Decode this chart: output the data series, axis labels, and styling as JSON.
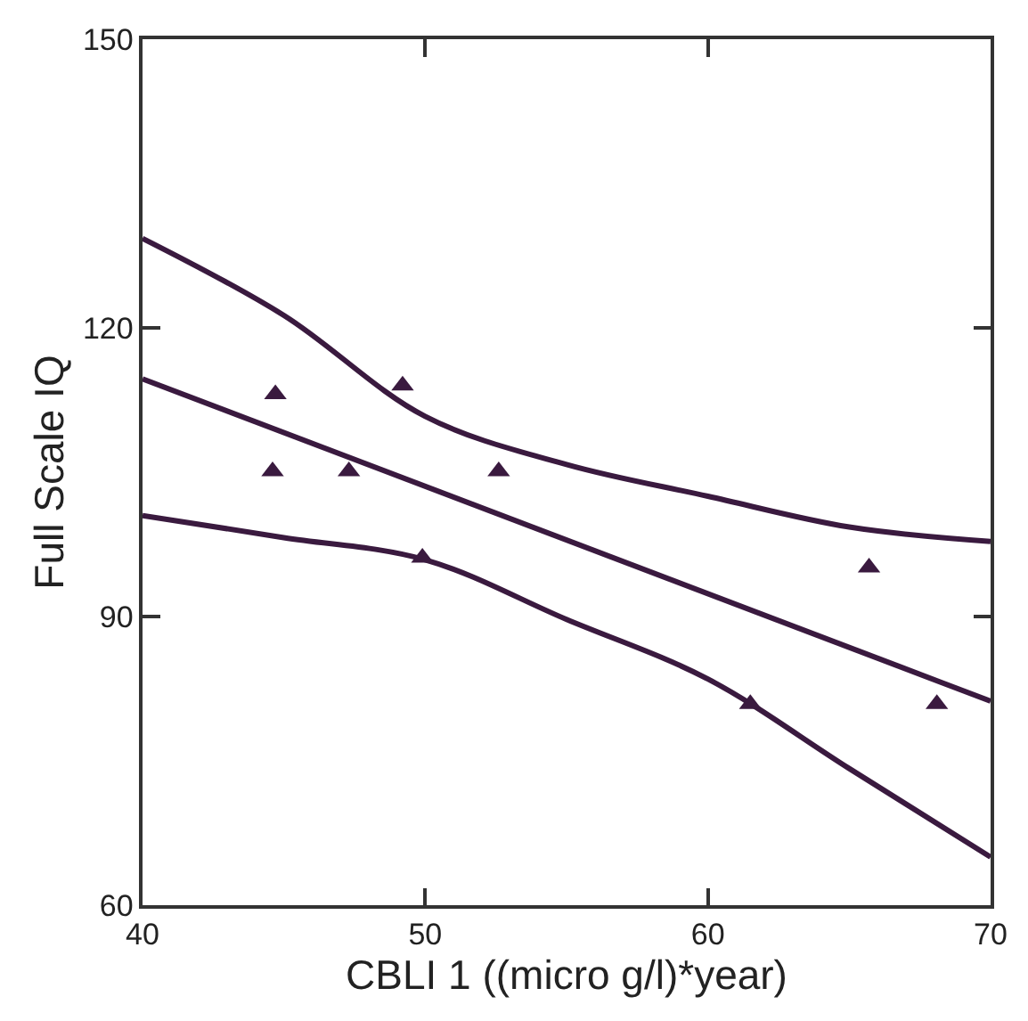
{
  "chart_data": {
    "type": "scatter",
    "xlabel": "CBLI 1 ((micro g/l)*year)",
    "ylabel": "Full Scale IQ",
    "xlim": [
      40,
      70
    ],
    "xticks": [
      40,
      50,
      60,
      70
    ],
    "ylim": [
      60,
      150
    ],
    "yticks": [
      60,
      90,
      120,
      150
    ],
    "grid": false,
    "series": [
      {
        "marker": "triangle",
        "color": "#3a1a3f",
        "x": [
          44.7,
          44.6,
          47.3,
          49.2,
          49.9,
          52.6,
          61.5,
          65.7,
          68.1
        ],
        "values": [
          113.1,
          105.1,
          105.1,
          114.0,
          96.1,
          105.1,
          80.9,
          95.1,
          80.9
        ]
      },
      {
        "type": "line",
        "color": "#3a1a3f",
        "x": [
          40,
          70
        ],
        "values": [
          114.7,
          81.2
        ]
      },
      {
        "type": "line",
        "color": "#3a1a3f",
        "x": [
          40,
          45,
          50,
          55,
          60,
          65,
          70
        ],
        "values": [
          129.3,
          121.3,
          110.8,
          105.8,
          102.5,
          99.3,
          97.8
        ]
      },
      {
        "type": "line",
        "color": "#3a1a3f",
        "x": [
          40,
          45,
          50,
          55,
          60,
          65,
          70
        ],
        "values": [
          100.5,
          98.2,
          95.9,
          89.7,
          83.5,
          74.2,
          65.0
        ]
      }
    ]
  }
}
